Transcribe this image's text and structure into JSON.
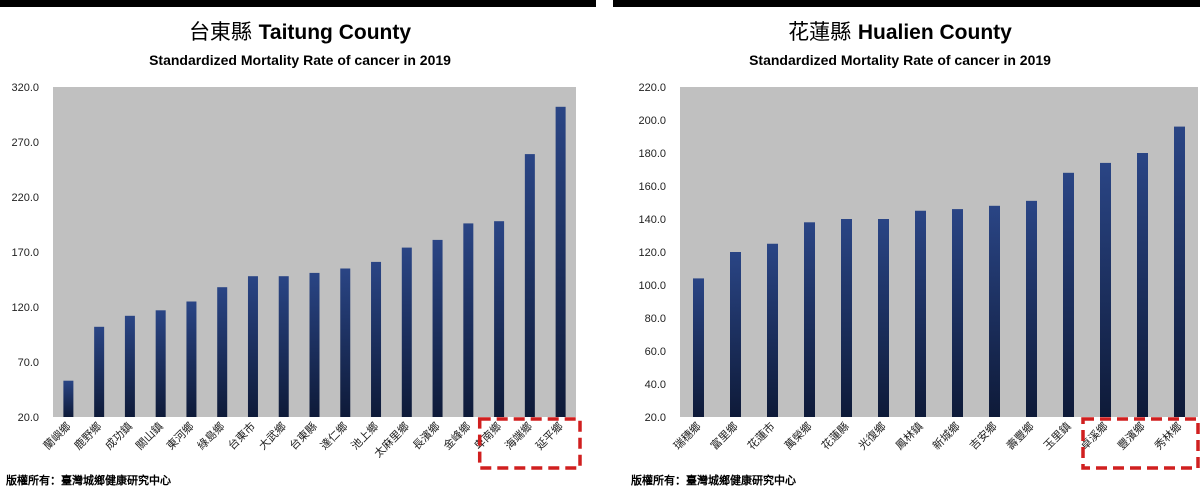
{
  "chart_data": [
    {
      "type": "bar",
      "title_zh": "台東縣",
      "title_en": "Taitung County",
      "subtitle": "Standardized Mortality Rate of cancer in 2019",
      "ylim": [
        20,
        320
      ],
      "yticks": [
        "20.0",
        "70.0",
        "120.0",
        "170.0",
        "220.0",
        "270.0",
        "320.0"
      ],
      "categories": [
        "蘭嶼鄉",
        "鹿野鄉",
        "成功鎮",
        "關山鎮",
        "東河鄉",
        "綠島鄉",
        "台東市",
        "大武鄉",
        "台東縣",
        "達仁鄉",
        "池上鄉",
        "太麻里鄉",
        "長濱鄉",
        "金峰鄉",
        "卑南鄉",
        "海端鄉",
        "延平鄉"
      ],
      "values": [
        53,
        102,
        112,
        117,
        125,
        138,
        148,
        148,
        151,
        155,
        161,
        174,
        181,
        196,
        198,
        259,
        302
      ],
      "highlighted": [
        "卑南鄉",
        "海端鄉",
        "延平鄉"
      ],
      "bar_color": "#1c2d5e",
      "plot_bg": "#c0c0c0",
      "highlight_color": "#d01f1f",
      "grid": false
    },
    {
      "type": "bar",
      "title_zh": "花蓮縣",
      "title_en": "Hualien County",
      "subtitle": "Standardized Mortality Rate of cancer in 2019",
      "ylim": [
        20,
        220
      ],
      "yticks": [
        "20.0",
        "40.0",
        "60.0",
        "80.0",
        "100.0",
        "120.0",
        "140.0",
        "160.0",
        "180.0",
        "200.0",
        "220.0"
      ],
      "categories": [
        "瑞穗鄉",
        "富里鄉",
        "花蓮市",
        "萬榮鄉",
        "花蓮縣",
        "光復鄉",
        "鳳林鎮",
        "新城鄉",
        "吉安鄉",
        "壽豐鄉",
        "玉里鎮",
        "卓溪鄉",
        "豐濱鄉",
        "秀林鄉"
      ],
      "values": [
        104,
        120,
        125,
        138,
        140,
        140,
        145,
        146,
        148,
        151,
        168,
        174,
        180,
        196
      ],
      "highlighted": [
        "卓溪鄉",
        "豐濱鄉",
        "秀林鄉"
      ],
      "bar_color": "#1c2d5e",
      "plot_bg": "#c0c0c0",
      "highlight_color": "#d01f1f",
      "grid": false
    }
  ],
  "copyright": "版權所有：臺灣城鄉健康研究中心"
}
